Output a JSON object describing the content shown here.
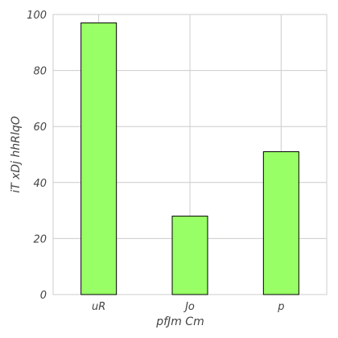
{
  "chart_data": {
    "type": "bar",
    "categories": [
      "uR",
      "Jo",
      "p"
    ],
    "values": [
      97,
      28,
      51
    ],
    "xlabel": "pfJm Cm",
    "ylabel": "iT xDj hhRlqO",
    "ylim": [
      0,
      100
    ],
    "yticks": [
      0,
      20,
      40,
      60,
      80,
      100
    ],
    "grid": true,
    "legend": "none",
    "colors": {
      "bar_fill": "#99ff66",
      "bar_edge": "#000000",
      "grid": "#cccccc",
      "axis_text": "#444444"
    }
  }
}
